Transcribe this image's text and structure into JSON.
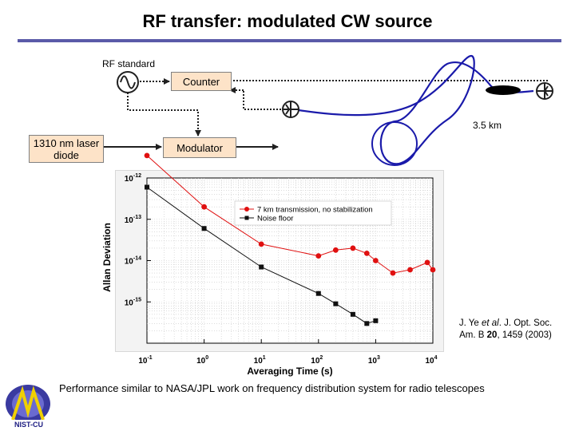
{
  "slide": {
    "title": "RF transfer: modulated CW source",
    "footer": "Performance similar to NASA/JPL work on frequency distribution system for radio telescopes",
    "citation": {
      "author": "J. Ye ",
      "etal": "et al",
      "ref_pre": ". J. Opt. Soc. Am. B ",
      "volume": "20",
      "ref_post": ", 1459 (2003)"
    },
    "logo_text": "NIST-CU"
  },
  "diagram": {
    "rf_standard_label": "RF standard",
    "counter_label": "Counter",
    "laser_label": "1310 nm laser diode",
    "modulator_label": "Modulator",
    "fiber_length_label": "3.5 km",
    "colors": {
      "box_fill": "#fde3c8",
      "fiber": "#1a1aaa",
      "rule": "#5a5aa8"
    },
    "icons": [
      "oscillator-icon",
      "mixer-icon",
      "photodetector-icon"
    ]
  },
  "chart_data": {
    "type": "line",
    "xlabel": "Averaging Time (s)",
    "ylabel": "Allan Deviation",
    "xscale": "log",
    "yscale": "log",
    "xlim": [
      0.1,
      10000
    ],
    "ylim": [
      1e-16,
      1e-12
    ],
    "x_tick_labels": [
      {
        "base": "10",
        "exp": "-1"
      },
      {
        "base": "10",
        "exp": "0"
      },
      {
        "base": "10",
        "exp": "1"
      },
      {
        "base": "10",
        "exp": "2"
      },
      {
        "base": "10",
        "exp": "3"
      },
      {
        "base": "10",
        "exp": "4"
      }
    ],
    "y_tick_labels": [
      {
        "base": "10",
        "exp": "-12"
      },
      {
        "base": "10",
        "exp": "-13"
      },
      {
        "base": "10",
        "exp": "-14"
      },
      {
        "base": "10",
        "exp": "-15"
      }
    ],
    "y_tick_values": [
      1e-12,
      1e-13,
      1e-14,
      1e-15
    ],
    "x_tick_values": [
      0.1,
      1,
      10,
      100,
      1000,
      10000
    ],
    "legend_position": "top-right",
    "grid": true,
    "series": [
      {
        "name": "7 km transmission, no stabilization",
        "color": "#e01010",
        "marker": "circle",
        "x": [
          0.1,
          1,
          10,
          100,
          200,
          400,
          700,
          1000,
          2000,
          4000,
          8000,
          10000
        ],
        "y": [
          3.5e-12,
          2e-13,
          2.5e-14,
          1.3e-14,
          1.8e-14,
          2e-14,
          1.5e-14,
          1e-14,
          5e-15,
          6e-15,
          9e-15,
          6e-15
        ]
      },
      {
        "name": "Noise floor",
        "color": "#101010",
        "marker": "square",
        "x": [
          0.1,
          1,
          10,
          100,
          200,
          400,
          700,
          1000
        ],
        "y": [
          6e-13,
          6e-14,
          7e-15,
          1.6e-15,
          9e-16,
          5e-16,
          3e-16,
          3.5e-16
        ]
      }
    ]
  }
}
